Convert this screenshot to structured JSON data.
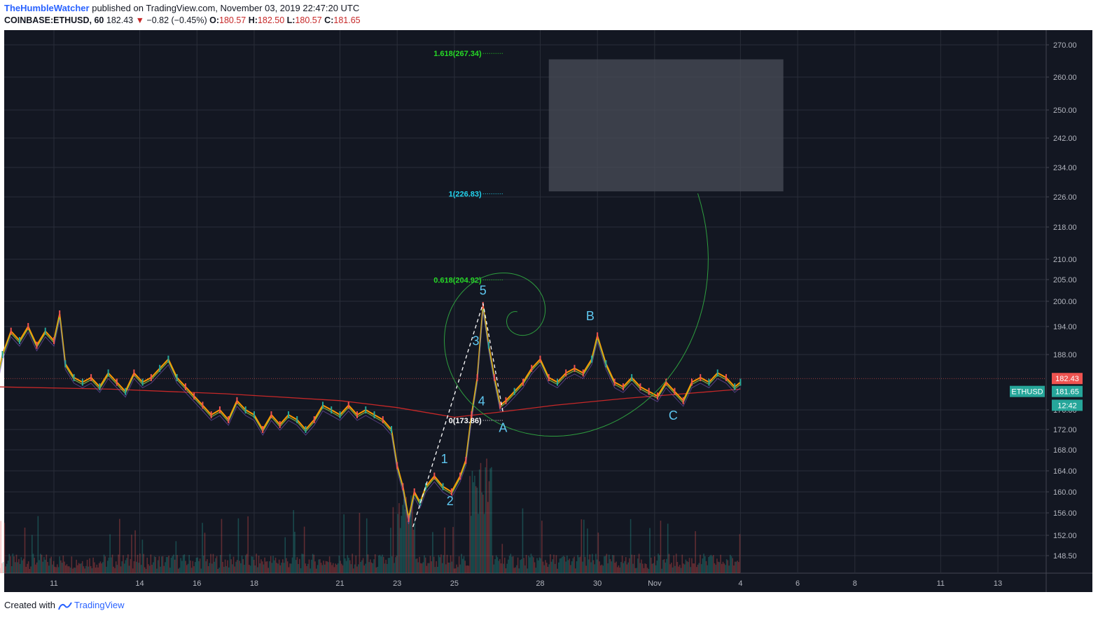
{
  "header": {
    "user": "TheHumbleWatcher",
    "published": "published on TradingView.com, November 03, 2019 22:47:20 UTC",
    "symbol": "COINBASE:ETHUSD, 60",
    "last": "182.43",
    "arrow": "▼",
    "change": "−0.82 (−0.45%)",
    "o_label": "O:",
    "o_value": "180.57",
    "h_label": "H:",
    "h_value": "182.50",
    "l_label": "L:",
    "l_value": "180.57",
    "c_label": "C:",
    "c_value": "181.65"
  },
  "footer": {
    "created_with": "Created with",
    "brand": "TradingView"
  },
  "colors": {
    "bg": "#131722",
    "grid": "#2a2e39",
    "fib_green": "#26d926",
    "fib_cyan": "#22d3ee",
    "wave_label": "#5ec7f0",
    "spiral": "#2e9e3f",
    "ma": "#c62828",
    "box": "#4a4d58",
    "price_tag_red": "#ef5350",
    "price_tag_green": "#26a69a"
  },
  "chart_data": {
    "type": "candlestick",
    "symbol": "ETHUSD",
    "interval": "60",
    "ylim": [
      146,
      273
    ],
    "y_ticks": [
      "270.00",
      "260.00",
      "250.00",
      "242.00",
      "234.00",
      "226.00",
      "218.00",
      "210.00",
      "205.00",
      "200.00",
      "194.00",
      "188.00",
      "182.43",
      "181.65",
      "176.00",
      "172.00",
      "168.00",
      "164.00",
      "160.00",
      "156.00",
      "152.00",
      "148.50"
    ],
    "x_ticks": [
      "11",
      "14",
      "16",
      "18",
      "21",
      "23",
      "25",
      "28",
      "30",
      "Nov",
      "4",
      "6",
      "8",
      "11",
      "13"
    ],
    "x_tick_days": [
      11,
      14,
      16,
      18,
      21,
      23,
      25,
      28,
      30,
      32,
      35,
      37,
      39,
      42,
      44
    ],
    "price_path": [
      [
        9.0,
        182
      ],
      [
        9.2,
        188
      ],
      [
        9.5,
        193
      ],
      [
        9.8,
        191
      ],
      [
        10.1,
        194
      ],
      [
        10.4,
        190
      ],
      [
        10.7,
        193
      ],
      [
        11.0,
        191
      ],
      [
        11.2,
        197
      ],
      [
        11.4,
        186
      ],
      [
        11.7,
        183
      ],
      [
        12.0,
        182
      ],
      [
        12.3,
        183
      ],
      [
        12.6,
        181
      ],
      [
        12.9,
        184
      ],
      [
        13.2,
        182
      ],
      [
        13.5,
        180
      ],
      [
        13.8,
        184
      ],
      [
        14.1,
        182
      ],
      [
        14.4,
        183
      ],
      [
        14.7,
        185
      ],
      [
        15.0,
        187
      ],
      [
        15.3,
        183
      ],
      [
        15.6,
        181
      ],
      [
        15.9,
        179
      ],
      [
        16.2,
        177
      ],
      [
        16.5,
        175
      ],
      [
        16.8,
        176
      ],
      [
        17.1,
        174
      ],
      [
        17.4,
        178
      ],
      [
        17.7,
        176
      ],
      [
        18.0,
        175
      ],
      [
        18.3,
        172
      ],
      [
        18.6,
        175
      ],
      [
        18.9,
        173
      ],
      [
        19.2,
        175
      ],
      [
        19.5,
        174
      ],
      [
        19.8,
        172
      ],
      [
        20.1,
        174
      ],
      [
        20.4,
        177
      ],
      [
        20.7,
        176
      ],
      [
        21.0,
        175
      ],
      [
        21.3,
        177
      ],
      [
        21.6,
        175
      ],
      [
        21.9,
        176
      ],
      [
        22.2,
        175
      ],
      [
        22.5,
        174
      ],
      [
        22.8,
        172
      ],
      [
        23.0,
        165
      ],
      [
        23.2,
        161
      ],
      [
        23.4,
        155
      ],
      [
        23.6,
        160
      ],
      [
        23.8,
        158
      ],
      [
        24.0,
        161
      ],
      [
        24.3,
        163
      ],
      [
        24.6,
        161
      ],
      [
        24.9,
        160
      ],
      [
        25.2,
        163
      ],
      [
        25.4,
        166
      ],
      [
        25.6,
        175
      ],
      [
        25.8,
        183
      ],
      [
        26.0,
        199
      ],
      [
        26.2,
        190
      ],
      [
        26.4,
        183
      ],
      [
        26.6,
        177
      ],
      [
        26.8,
        178
      ],
      [
        27.1,
        180
      ],
      [
        27.4,
        182
      ],
      [
        27.7,
        185
      ],
      [
        28.0,
        187
      ],
      [
        28.3,
        183
      ],
      [
        28.6,
        182
      ],
      [
        28.9,
        184
      ],
      [
        29.2,
        185
      ],
      [
        29.5,
        184
      ],
      [
        29.8,
        187
      ],
      [
        30.0,
        192
      ],
      [
        30.3,
        186
      ],
      [
        30.6,
        182
      ],
      [
        30.9,
        181
      ],
      [
        31.2,
        183
      ],
      [
        31.5,
        181
      ],
      [
        31.8,
        180
      ],
      [
        32.1,
        179
      ],
      [
        32.4,
        182
      ],
      [
        32.7,
        180
      ],
      [
        33.0,
        178
      ],
      [
        33.3,
        182
      ],
      [
        33.6,
        183
      ],
      [
        33.9,
        182
      ],
      [
        34.2,
        184
      ],
      [
        34.5,
        183
      ],
      [
        34.8,
        181
      ],
      [
        35.0,
        182
      ]
    ],
    "moving_average": [
      [
        9.0,
        181
      ],
      [
        13.0,
        180.5
      ],
      [
        17.0,
        179.5
      ],
      [
        21.0,
        178
      ],
      [
        23.0,
        176.5
      ],
      [
        25.0,
        174.5
      ],
      [
        26.5,
        175.5
      ],
      [
        28.5,
        177
      ],
      [
        31.0,
        178.5
      ],
      [
        33.0,
        179.5
      ],
      [
        35.0,
        180.5
      ]
    ],
    "fib_levels": [
      {
        "label": "1.618(267.34)",
        "value": 267.34,
        "color": "#26d926"
      },
      {
        "label": "1(226.83)",
        "value": 226.83,
        "color": "#22d3ee"
      },
      {
        "label": "0.618(204.92)",
        "value": 204.92,
        "color": "#26d926"
      },
      {
        "label": "0(173.86)",
        "value": 173.86,
        "color": "#ffffff"
      }
    ],
    "wave_labels": [
      {
        "text": "1",
        "day": 24.65,
        "price": 165.5
      },
      {
        "text": "2",
        "day": 24.85,
        "price": 157.5
      },
      {
        "text": "3",
        "day": 25.75,
        "price": 190.0
      },
      {
        "text": "4",
        "day": 25.95,
        "price": 177.0
      },
      {
        "text": "5",
        "day": 26.0,
        "price": 201.5
      },
      {
        "text": "A",
        "day": 26.7,
        "price": 171.5
      },
      {
        "text": "B",
        "day": 29.75,
        "price": 195.5
      },
      {
        "text": "C",
        "day": 32.65,
        "price": 174.0
      }
    ],
    "target_box": {
      "day_start": 28.3,
      "day_end": 36.5,
      "price_low": 227.5,
      "price_high": 265.5
    },
    "price_tags": [
      {
        "label": "182.43",
        "kind": "last",
        "color": "#ef5350"
      },
      {
        "label": "181.65",
        "kind": "close",
        "color": "#26a69a"
      },
      {
        "label": "12:42",
        "kind": "countdown",
        "color": "#26a69a"
      }
    ],
    "symbol_tag": "ETHUSD"
  }
}
